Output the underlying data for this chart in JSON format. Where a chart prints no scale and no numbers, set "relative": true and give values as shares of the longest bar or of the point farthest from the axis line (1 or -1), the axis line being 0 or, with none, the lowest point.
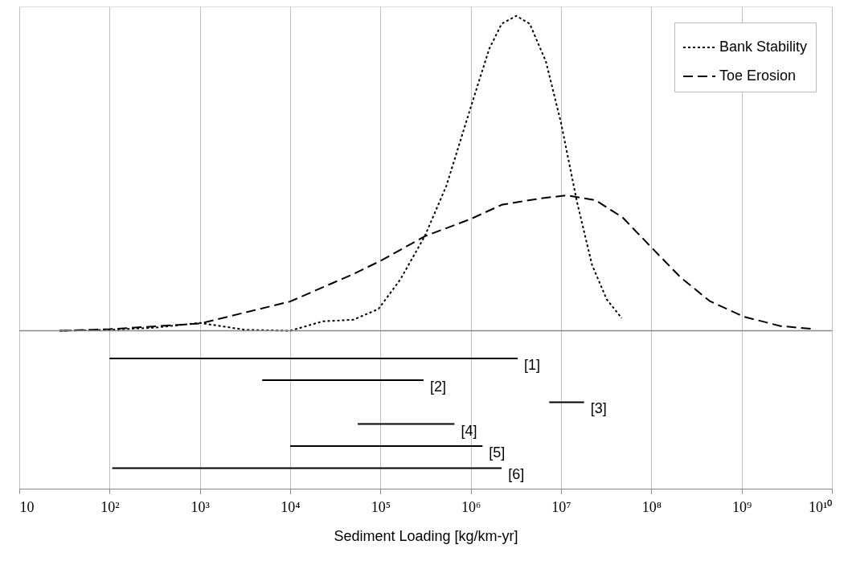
{
  "chart_data": {
    "type": "line",
    "relative": true,
    "xlabel": "Sediment Loading [kg/km-yr]",
    "log": "x",
    "xlim": [
      10,
      10000000000
    ],
    "xticks": [
      10,
      {
        "value": 100,
        "label": "10²"
      },
      {
        "value": 1000,
        "label": "10³"
      },
      {
        "value": 10000,
        "label": "10⁴"
      },
      {
        "value": 100000,
        "label": "10⁵"
      },
      {
        "value": 1000000,
        "label": "10⁶"
      },
      {
        "value": 10000000,
        "label": "10⁷"
      },
      {
        "value": 100000000,
        "label": "10⁸"
      },
      {
        "value": 1000000000,
        "label": "10⁹"
      },
      {
        "value": 10000000000,
        "label": "10¹⁰"
      }
    ],
    "grid": "x",
    "legend": "top right",
    "series": [
      {
        "name": "Bank Stability",
        "color": "#000000",
        "line_style": "dotted",
        "x": [
          28,
          100,
          316,
          1000,
          3200,
          10000,
          23000,
          50000,
          95000,
          166000,
          309000,
          537000,
          1000000,
          1600000,
          2200000,
          3200000,
          4500000,
          6800000,
          10000000,
          15000000,
          22000000,
          32000000,
          47000000
        ],
        "values": [
          0,
          0.003,
          0.01,
          0.025,
          0.003,
          0,
          0.03,
          0.035,
          0.069,
          0.163,
          0.3,
          0.46,
          0.71,
          0.895,
          0.975,
          1,
          0.975,
          0.855,
          0.66,
          0.41,
          0.21,
          0.1,
          0.04
        ]
      },
      {
        "name": "Toe Erosion",
        "color": "#000000",
        "line_style": "dashed",
        "x": [
          28,
          100,
          1000,
          10000,
          50000,
          100000,
          309000,
          1000000,
          2200000,
          5800000,
          11500000,
          24000000,
          48000000,
          100000000,
          210000000,
          440000000,
          1050000000,
          2700000000,
          6500000000
        ],
        "values": [
          0,
          0.005,
          0.023,
          0.093,
          0.18,
          0.222,
          0.3,
          0.355,
          0.4,
          0.42,
          0.43,
          0.415,
          0.36,
          0.265,
          0.17,
          0.095,
          0.045,
          0.015,
          0.005
        ]
      },
      {
        "color": "#000000",
        "line_style": "solid",
        "x": [
          100,
          3300000
        ],
        "values": [
          -0.088,
          -0.088
        ]
      },
      {
        "color": "#000000",
        "line_style": "solid",
        "x": [
          4900,
          300000
        ],
        "values": [
          -0.157,
          -0.157
        ]
      },
      {
        "color": "#000000",
        "line_style": "solid",
        "x": [
          7400000,
          18000000
        ],
        "values": [
          -0.227,
          -0.227
        ]
      },
      {
        "color": "#000000",
        "line_style": "solid",
        "x": [
          56000,
          660000
        ],
        "values": [
          -0.296,
          -0.296
        ]
      },
      {
        "color": "#000000",
        "line_style": "solid",
        "x": [
          10000,
          1350000
        ],
        "values": [
          -0.366,
          -0.366
        ]
      },
      {
        "color": "#000000",
        "line_style": "solid",
        "x": [
          107,
          2200000
        ],
        "values": [
          -0.436,
          -0.436
        ]
      }
    ],
    "annotations": [
      {
        "text": "[1]",
        "x": 3300000,
        "y": -0.088
      },
      {
        "text": "[2]",
        "x": 300000,
        "y": -0.157
      },
      {
        "text": "[3]",
        "x": 18000000,
        "y": -0.227
      },
      {
        "text": "[4]",
        "x": 660000,
        "y": -0.296
      },
      {
        "text": "[5]",
        "x": 1350000,
        "y": -0.366
      },
      {
        "text": "[6]",
        "x": 2200000,
        "y": -0.436
      }
    ]
  }
}
